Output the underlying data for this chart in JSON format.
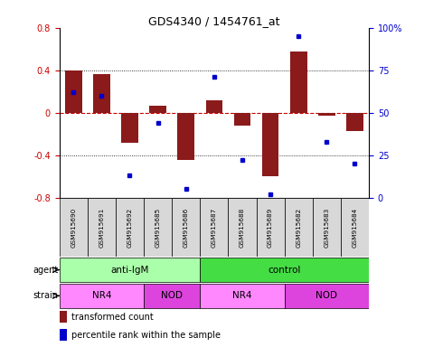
{
  "title": "GDS4340 / 1454761_at",
  "samples": [
    "GSM915690",
    "GSM915691",
    "GSM915692",
    "GSM915685",
    "GSM915686",
    "GSM915687",
    "GSM915688",
    "GSM915689",
    "GSM915682",
    "GSM915683",
    "GSM915684"
  ],
  "bar_values": [
    0.4,
    0.36,
    -0.28,
    0.07,
    -0.44,
    0.12,
    -0.12,
    -0.6,
    0.58,
    -0.03,
    -0.17
  ],
  "percentile_values": [
    62,
    60,
    13,
    44,
    5,
    71,
    22,
    2,
    95,
    33,
    20
  ],
  "ylim_left": [
    -0.8,
    0.8
  ],
  "ylim_right": [
    0,
    100
  ],
  "yticks_left": [
    -0.8,
    -0.4,
    0.0,
    0.4,
    0.8
  ],
  "yticks_right": [
    0,
    25,
    50,
    75,
    100
  ],
  "ytick_labels_left": [
    "-0.8",
    "-0.4",
    "0",
    "0.4",
    "0.8"
  ],
  "ytick_labels_right": [
    "0",
    "25",
    "50",
    "75",
    "100%"
  ],
  "bar_color": "#8B1A1A",
  "point_color": "#0000CC",
  "hline_color": "#CC0000",
  "dotted_line_color": "#000000",
  "agent_labels": [
    {
      "label": "anti-IgM",
      "start": 0,
      "end": 4,
      "color": "#AAFFAA"
    },
    {
      "label": "control",
      "start": 5,
      "end": 10,
      "color": "#44DD44"
    }
  ],
  "strain_labels": [
    {
      "label": "NR4",
      "start": 0,
      "end": 2,
      "color": "#FF88FF"
    },
    {
      "label": "NOD",
      "start": 3,
      "end": 4,
      "color": "#DD44DD"
    },
    {
      "label": "NR4",
      "start": 5,
      "end": 7,
      "color": "#FF88FF"
    },
    {
      "label": "NOD",
      "start": 8,
      "end": 10,
      "color": "#DD44DD"
    }
  ],
  "row_labels": [
    "agent",
    "strain"
  ],
  "legend_items": [
    [
      "transformed count",
      "#8B1A1A"
    ],
    [
      "percentile rank within the sample",
      "#0000CC"
    ]
  ],
  "background_color": "#FFFFFF",
  "tick_label_color_left": "#CC0000",
  "tick_label_color_right": "#0000CC",
  "sample_box_color": "#D8D8D8"
}
